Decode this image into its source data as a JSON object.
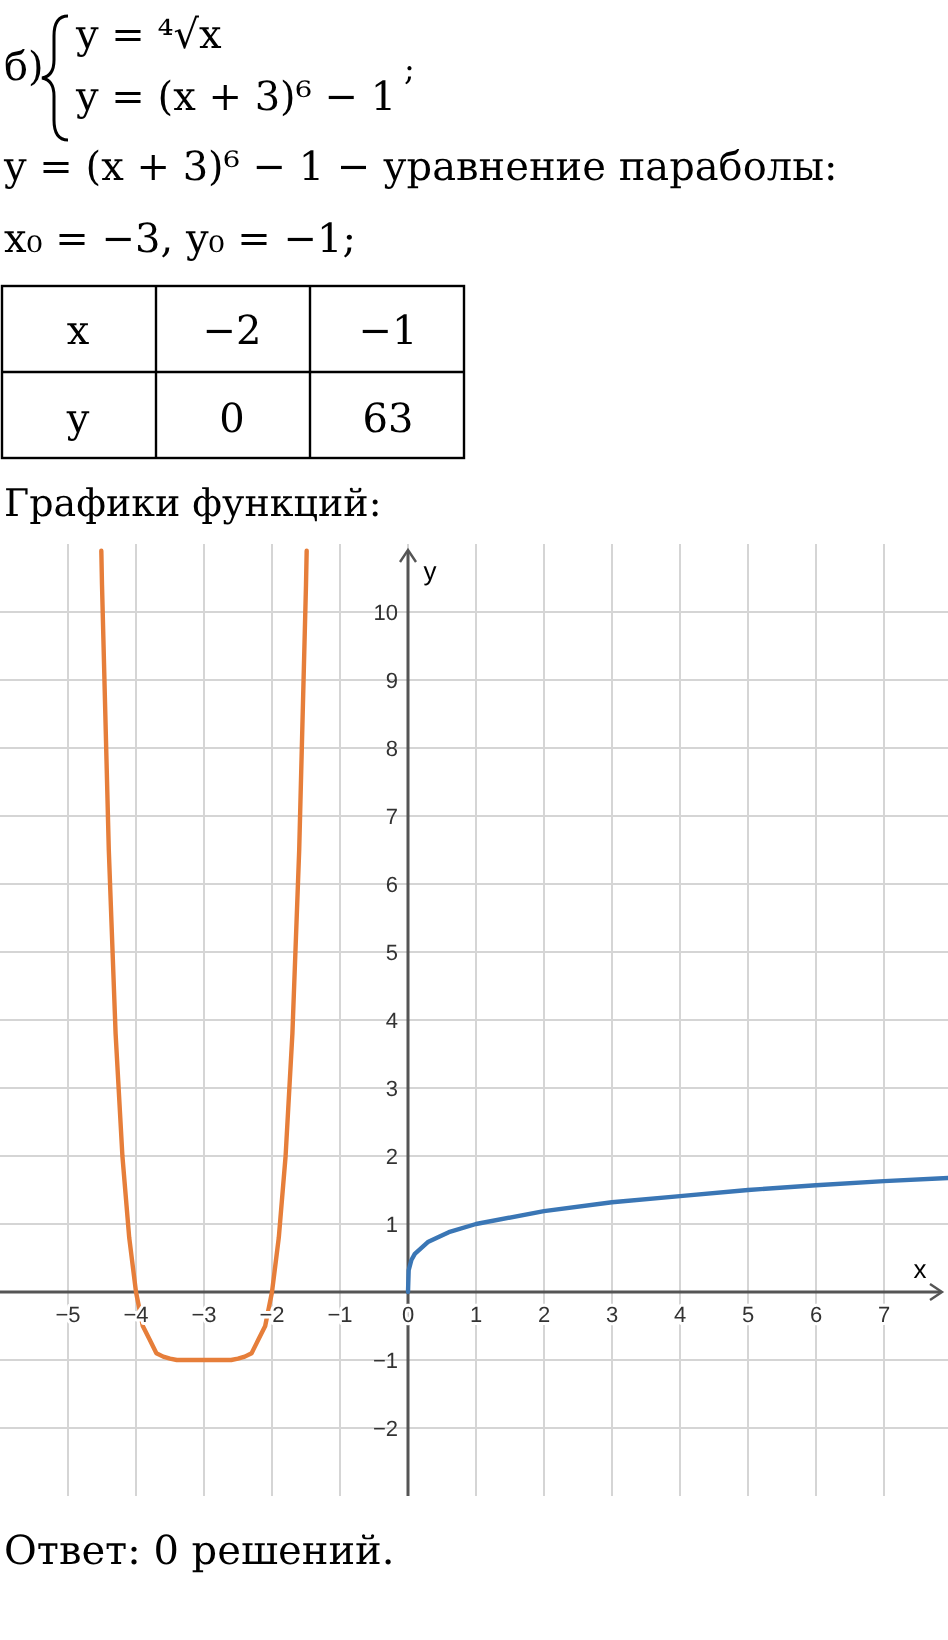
{
  "chart_data": {
    "type": "line",
    "title": "Графики функций:",
    "xlabel": "x",
    "ylabel": "y",
    "annotations": [
      "б)",
      "y = ⁴√x",
      "y = (x + 3)⁶ − 1",
      ";",
      "y = (x + 3)⁶ − 1 − уравнение параболы:",
      "x₀ = −3,  y₀ = −1;",
      "x",
      "−2",
      "−1",
      "y",
      "0",
      "63",
      "Ответ:  0 решений."
    ],
    "xlim": [
      -6,
      8
    ],
    "ylim": [
      -3,
      11
    ],
    "xticks": [
      {
        "value": -5,
        "label": "−5"
      },
      {
        "value": -4,
        "label": "−4"
      },
      {
        "value": -3,
        "label": "−3"
      },
      {
        "value": -2,
        "label": "−2"
      },
      {
        "value": -1,
        "label": "−1"
      },
      0,
      1,
      2,
      3,
      4,
      5,
      6,
      7
    ],
    "yticks": [
      {
        "value": -2,
        "label": "−2"
      },
      {
        "value": -1,
        "label": "−1"
      },
      1,
      2,
      3,
      4,
      5,
      6,
      7,
      8,
      9,
      10
    ],
    "grid": true,
    "marker": "none",
    "line_style": "solid",
    "series": [
      {
        "color": "#e67e3a",
        "x": [
          -4.51,
          -4.5,
          -4.4,
          -4.3,
          -4.2,
          -4.1,
          -4,
          -3.9,
          -3.8,
          -3.7,
          -3.6,
          -3.5,
          -3.4,
          -3.2,
          -3,
          -2.8,
          -2.6,
          -2.5,
          -2.4,
          -2.3,
          -2.2,
          -2.1,
          -2,
          -1.9,
          -1.8,
          -1.7,
          -1.6,
          -1.5,
          -1.49
        ],
        "values": [
          10.9,
          10.4,
          6.5,
          3.8,
          2.0,
          0.8,
          0,
          -0.5,
          -0.7,
          -0.9,
          -0.95,
          -0.98,
          -1,
          -1,
          -1,
          -1,
          -1,
          -0.98,
          -0.95,
          -0.9,
          -0.7,
          -0.5,
          0,
          0.8,
          2.0,
          3.8,
          6.5,
          10.4,
          10.9
        ]
      },
      {
        "color": "#3a76b5",
        "x": [
          0,
          0.01,
          0.05,
          0.1,
          0.3,
          0.6,
          1,
          2,
          3,
          4,
          5,
          6,
          7,
          8
        ],
        "values": [
          0,
          0.32,
          0.47,
          0.56,
          0.74,
          0.88,
          1,
          1.19,
          1.32,
          1.41,
          1.5,
          1.57,
          1.63,
          1.68
        ]
      }
    ]
  }
}
